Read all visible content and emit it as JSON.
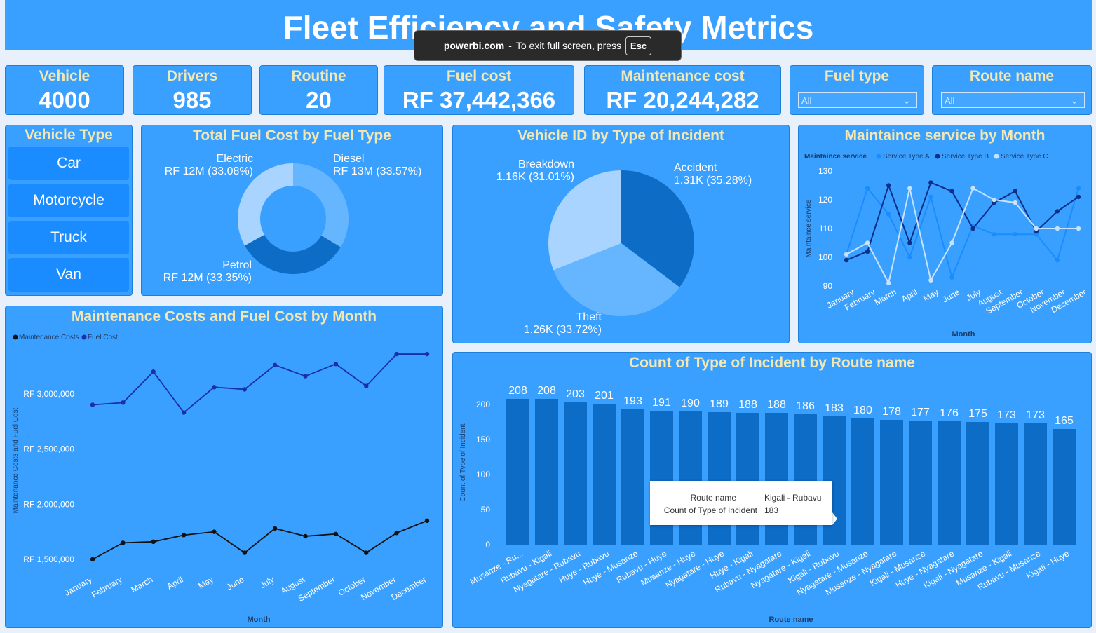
{
  "header": {
    "title": "Fleet Efficiency and Safety Metrics"
  },
  "toast": {
    "site": "powerbi.com",
    "dash": "-",
    "message": "To exit full screen, press",
    "key": "Esc"
  },
  "kpis": {
    "vehicle": {
      "label": "Vehicle",
      "value": "4000"
    },
    "drivers": {
      "label": "Drivers",
      "value": "985"
    },
    "routine": {
      "label": "Routine",
      "value": "20"
    },
    "fuel_cost": {
      "label": "Fuel cost",
      "value": "RF 37,442,366"
    },
    "maintenance_cost": {
      "label": "Maintenance cost",
      "value": "RF 20,244,282"
    }
  },
  "slicers": {
    "fuel_type": {
      "label": "Fuel type",
      "value": "All"
    },
    "route_name": {
      "label": "Route name",
      "value": "All"
    }
  },
  "vehicle_type": {
    "title": "Vehicle Type",
    "items": [
      "Car",
      "Motorcycle",
      "Truck",
      "Van"
    ]
  },
  "colors": {
    "dark": "#0d6cc6",
    "mid": "#65b6ff",
    "light": "#a9d4ff",
    "panel": "#3aa0ff",
    "title": "#f3e7b4"
  },
  "chart_data": [
    {
      "id": "fuel_cost_by_type",
      "type": "donut",
      "title": "Total Fuel Cost by Fuel Type",
      "slices": [
        {
          "name": "Diesel",
          "label": "RF 13M (33.57%)",
          "value": 33.57
        },
        {
          "name": "Petrol",
          "label": "RF 12M (33.35%)",
          "value": 33.35
        },
        {
          "name": "Electric",
          "label": "RF 12M (33.08%)",
          "value": 33.08
        }
      ]
    },
    {
      "id": "vehicle_by_incident",
      "type": "pie",
      "title": "Vehicle ID by Type of Incident",
      "slices": [
        {
          "name": "Accident",
          "label": "1.31K (35.28%)",
          "value": 35.28
        },
        {
          "name": "Theft",
          "label": "1.26K (33.72%)",
          "value": 33.72
        },
        {
          "name": "Breakdown",
          "label": "1.16K (31.01%)",
          "value": 31.01
        }
      ]
    },
    {
      "id": "maintenance_service_by_month",
      "type": "line",
      "title": "Maintaince service by Month",
      "legend_title": "Maintaince service",
      "xlabel": "Month",
      "ylabel": "Maintaince service",
      "ylim": [
        90,
        130
      ],
      "yticks": [
        "130",
        "120",
        "110",
        "100",
        "90"
      ],
      "categories": [
        "January",
        "February",
        "March",
        "April",
        "May",
        "June",
        "July",
        "August",
        "September",
        "October",
        "November",
        "December"
      ],
      "series": [
        {
          "name": "Service Type A",
          "color": "#1a8cff",
          "values": [
            101,
            124,
            115,
            100,
            121,
            93,
            111,
            108,
            108,
            108,
            99,
            124
          ]
        },
        {
          "name": "Service Type B",
          "color": "#0b2f8a",
          "values": [
            99,
            102,
            125,
            105,
            126,
            123,
            110,
            119,
            123,
            109,
            116,
            121
          ]
        },
        {
          "name": "Service Type C",
          "color": "#c8e3ff",
          "values": [
            101,
            105,
            91,
            124,
            92,
            105,
            124,
            120,
            119,
            110,
            110,
            110
          ]
        }
      ]
    },
    {
      "id": "maint_fuel_by_month",
      "type": "line",
      "title": "Maintenance Costs and Fuel Cost by Month",
      "xlabel": "Month",
      "ylabel": "Maintenance Costs and Fuel Cost",
      "ylim": [
        1450000,
        3400000
      ],
      "yticks": [
        {
          "value": 3000000,
          "label": "RF 3,000,000"
        },
        {
          "value": 2500000,
          "label": "RF 2,500,000"
        },
        {
          "value": 2000000,
          "label": "RF 2,000,000"
        },
        {
          "value": 1500000,
          "label": "RF 1,500,000"
        }
      ],
      "categories": [
        "January",
        "February",
        "March",
        "April",
        "May",
        "June",
        "July",
        "August",
        "September",
        "October",
        "November",
        "December"
      ],
      "series": [
        {
          "name": "Maintenance Costs",
          "color": "#111111",
          "values": [
            1500000,
            1650000,
            1660000,
            1720000,
            1750000,
            1560000,
            1780000,
            1710000,
            1730000,
            1560000,
            1740000,
            1850000
          ]
        },
        {
          "name": "Fuel Cost",
          "color": "#1a2fa8",
          "values": [
            2900000,
            2920000,
            3200000,
            2830000,
            3060000,
            3040000,
            3260000,
            3160000,
            3270000,
            3070000,
            3360000,
            3360000
          ]
        }
      ]
    },
    {
      "id": "incidents_by_route",
      "type": "bar",
      "title": "Count of Type of Incident by Route name",
      "xlabel": "Route name",
      "ylabel": "Count of Type of Incident",
      "ylim": [
        0,
        210
      ],
      "yticks": [
        0,
        50,
        100,
        150,
        200
      ],
      "categories": [
        "Musanze - Ru...",
        "Rubavu - Kigali",
        "Nyagatare - Rubavu",
        "Huye - Rubavu",
        "Huye - Musanze",
        "Rubavu - Huye",
        "Musanze - Huye",
        "Nyagatare - Huye",
        "Huye - Kigali",
        "Rubavu - Nyagatare",
        "Nyagatare - Kigali",
        "Kigali - Rubavu",
        "Nyagatare - Musanze",
        "Musanze - Nyagatare",
        "Kigali - Musanze",
        "Huye - Nyagatare",
        "Kigali - Nyagatare",
        "Musanze - Kigali",
        "Rubavu - Musanze",
        "Kigali - Huye"
      ],
      "values": [
        208,
        208,
        203,
        201,
        193,
        191,
        190,
        189,
        188,
        188,
        186,
        183,
        180,
        178,
        177,
        176,
        175,
        173,
        173,
        165
      ],
      "tooltip": {
        "route_label": "Route name",
        "route_value": "Kigali - Rubavu",
        "count_label": "Count of Type of Incident",
        "count_value": "183"
      }
    }
  ]
}
